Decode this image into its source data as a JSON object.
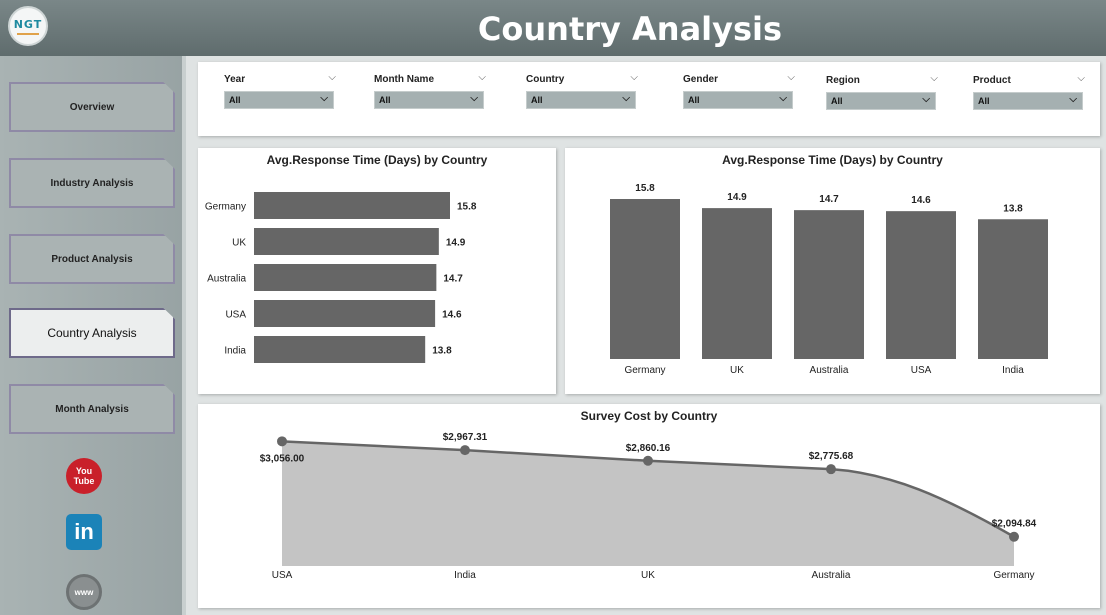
{
  "header": {
    "title": "Country Analysis",
    "logo_text": "NGT"
  },
  "sidebar": {
    "items": [
      {
        "label": "Overview",
        "active": false
      },
      {
        "label": "Industry Analysis",
        "active": false
      },
      {
        "label": "Product Analysis",
        "active": false
      },
      {
        "label": "Country Analysis",
        "active": true
      },
      {
        "label": "Month Analysis",
        "active": false
      }
    ],
    "social": {
      "youtube_top": "You",
      "youtube_bottom": "Tube",
      "linkedin": "in",
      "web": "www"
    }
  },
  "filters": [
    {
      "label": "Year",
      "value": "All"
    },
    {
      "label": "Month Name",
      "value": "All"
    },
    {
      "label": "Country",
      "value": "All"
    },
    {
      "label": "Gender",
      "value": "All"
    },
    {
      "label": "Region",
      "value": "All"
    },
    {
      "label": "Product",
      "value": "All"
    }
  ],
  "chart_data": [
    {
      "type": "bar",
      "orientation": "horizontal",
      "title": "Avg.Response Time (Days) by Country",
      "categories": [
        "Germany",
        "UK",
        "Australia",
        "USA",
        "India"
      ],
      "values": [
        15.8,
        14.9,
        14.7,
        14.6,
        13.8
      ],
      "value_labels": [
        "15.8",
        "14.9",
        "14.7",
        "14.6",
        "13.8"
      ],
      "color": "#666666"
    },
    {
      "type": "bar",
      "orientation": "vertical",
      "title": "Avg.Response Time (Days) by Country",
      "categories": [
        "Germany",
        "UK",
        "Australia",
        "USA",
        "India"
      ],
      "values": [
        15.8,
        14.9,
        14.7,
        14.6,
        13.8
      ],
      "value_labels": [
        "15.8",
        "14.9",
        "14.7",
        "14.6",
        "13.8"
      ],
      "color": "#666666"
    },
    {
      "type": "area",
      "title": "Survey Cost by Country",
      "categories": [
        "USA",
        "India",
        "UK",
        "Australia",
        "Germany"
      ],
      "values": [
        3056.0,
        2967.31,
        2860.16,
        2775.68,
        2094.84
      ],
      "value_labels": [
        "$3,056.00",
        "$2,967.31",
        "$2,860.16",
        "$2,775.68",
        "$2,094.84"
      ],
      "fill": "#c4c4c4",
      "line": "#666666"
    }
  ]
}
